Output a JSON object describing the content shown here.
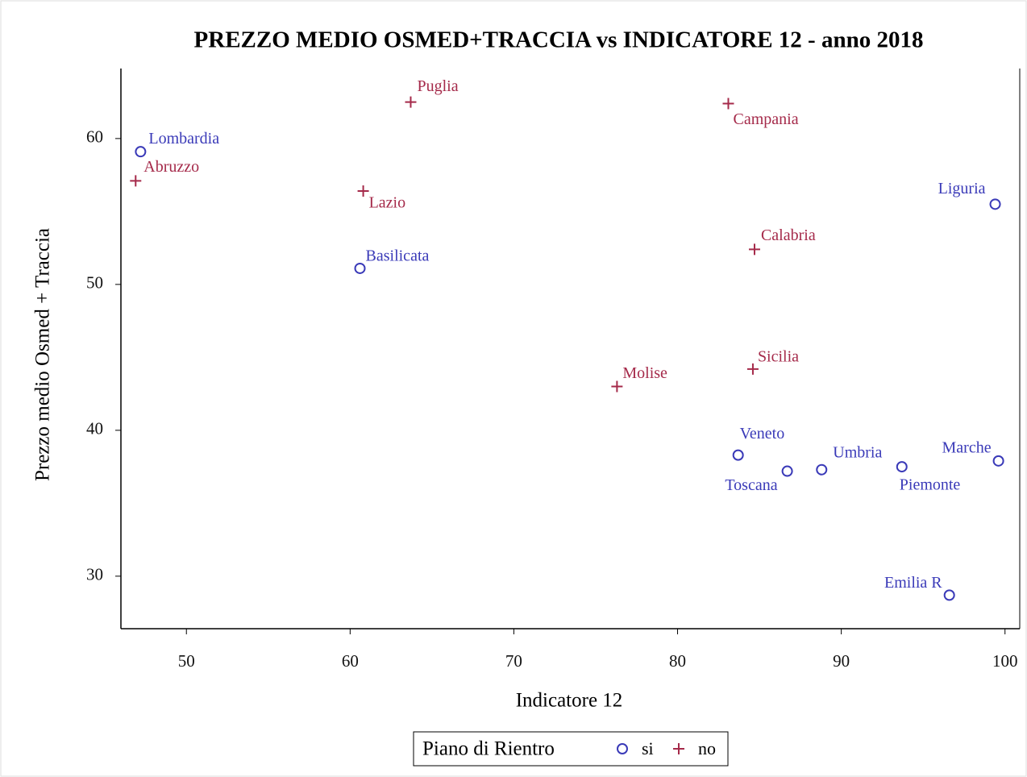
{
  "chart_data": {
    "type": "scatter",
    "title": "PREZZO MEDIO OSMED+TRACCIA vs INDICATORE 12 - anno 2018",
    "x_label": "Indicatore 12",
    "y_label": "Prezzo medio Osmed + Traccia",
    "legend_title": "Piano di Rientro",
    "xlim": [
      46,
      100.9
    ],
    "ylim": [
      26.4,
      64.8
    ],
    "xticks": [
      50,
      60,
      70,
      80,
      90,
      100
    ],
    "yticks": [
      30,
      40,
      50,
      60
    ],
    "series": [
      {
        "name": "si",
        "color": "#3a3ab8",
        "marker": "circle",
        "labels": [
          "Lombardia",
          "Liguria",
          "Basilicata",
          "Veneto",
          "Toscana",
          "Umbria",
          "Piemonte",
          "Marche",
          "Emilia R"
        ],
        "x": [
          47.2,
          99.4,
          60.6,
          83.7,
          86.7,
          88.8,
          93.7,
          99.6,
          96.6
        ],
        "values": [
          59.1,
          55.5,
          51.1,
          38.3,
          37.2,
          37.3,
          37.5,
          37.9,
          28.7
        ]
      },
      {
        "name": "no",
        "color": "#a52a4a",
        "marker": "plus",
        "labels": [
          "Abruzzo",
          "Puglia",
          "Campania",
          "Lazio",
          "Calabria",
          "Sicilia",
          "Molise"
        ],
        "x": [
          46.9,
          63.7,
          83.1,
          60.8,
          84.7,
          84.6,
          76.3
        ],
        "values": [
          57.1,
          62.5,
          62.4,
          56.4,
          52.4,
          44.2,
          43.0
        ]
      }
    ]
  }
}
